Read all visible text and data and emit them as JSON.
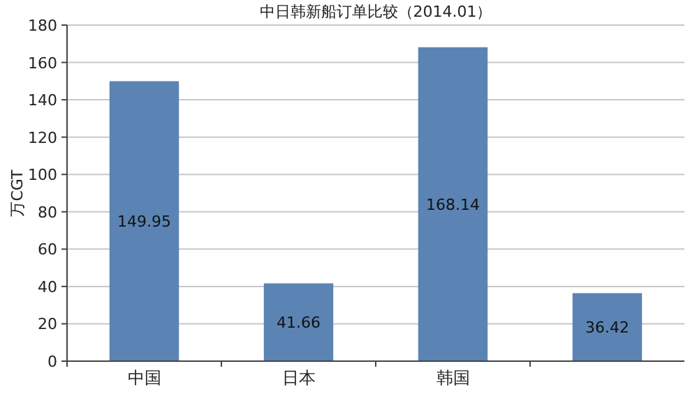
{
  "chart_data": {
    "type": "bar",
    "title": "中日韩新船订单比较（2014.01）",
    "ylabel": "万CGT",
    "categories": [
      "中国",
      "日本",
      "韩国",
      null
    ],
    "values": [
      149.95,
      41.66,
      168.14,
      36.42
    ],
    "color": "#5b84b4",
    "ylim": [
      0,
      180
    ],
    "yticks": [
      0,
      20,
      40,
      60,
      80,
      100,
      120,
      140,
      160,
      180
    ],
    "grid": "y",
    "data_labels": true
  }
}
